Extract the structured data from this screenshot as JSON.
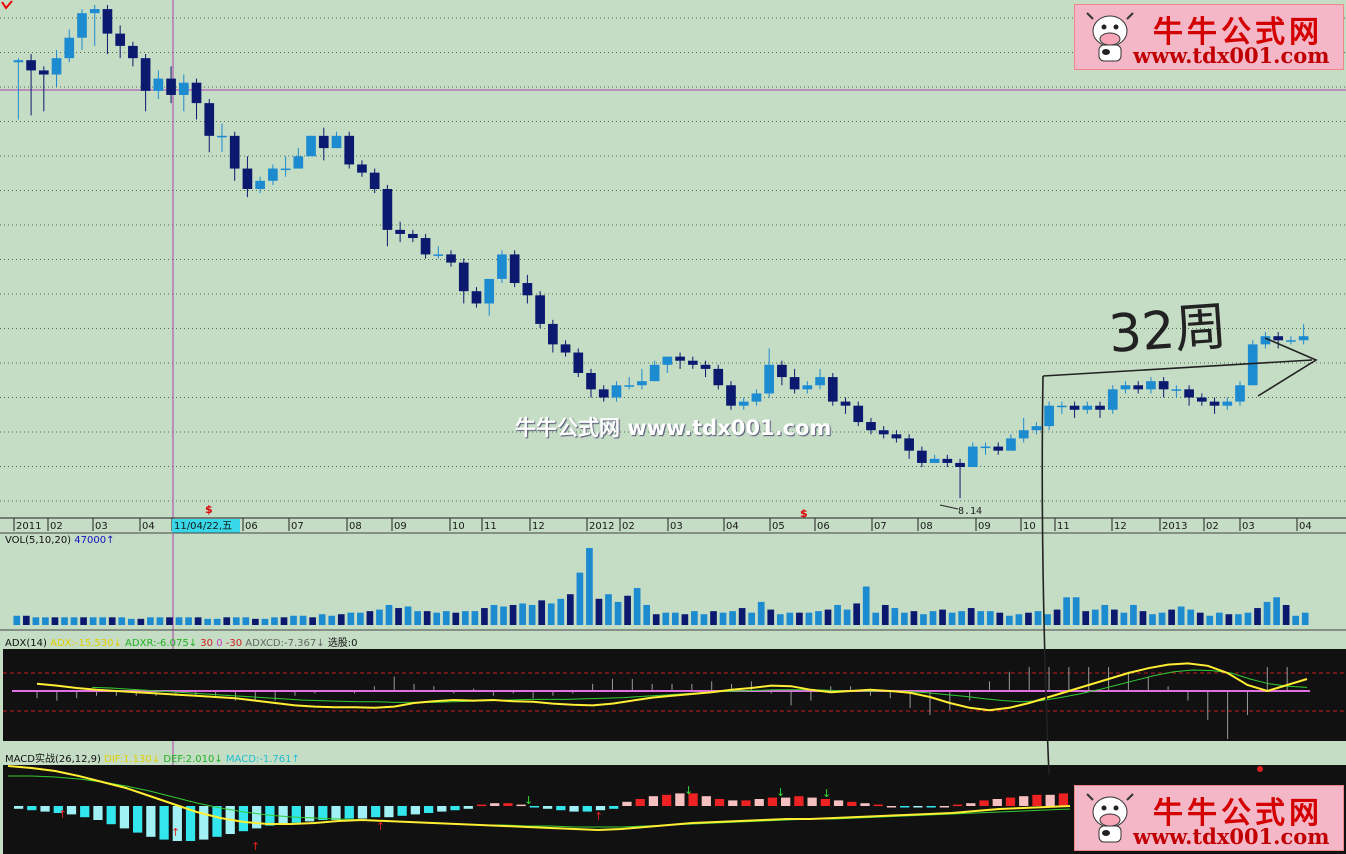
{
  "colors": {
    "background": "#c5dcc5",
    "up_candle": "#1d8bd0",
    "down_candle": "#0b1a6e",
    "indicator_bg": "#111111",
    "yellow_line": "#ffee33",
    "green_line": "#33cc33",
    "magenta_line": "#e070e0",
    "cyan_bar": "#33e6ee",
    "red_bar": "#ee2222"
  },
  "x_axis_labels": [
    "2011",
    "02",
    "03",
    "04",
    "11/04/22,五",
    "06",
    "07",
    "08",
    "09",
    "10",
    "11",
    "12",
    "2012",
    "02",
    "03",
    "04",
    "05",
    "06",
    "07",
    "08",
    "09",
    "10",
    "11",
    "12",
    "2013",
    "02",
    "03",
    "04"
  ],
  "price_low_label": "8.14",
  "volume_header": {
    "name": "VOL(5,10,20)",
    "value": "47000",
    "arrow": "↑"
  },
  "adx_header": {
    "name": "ADX(14)",
    "adx": "ADX:-15.530",
    "adx_arrow": "↓",
    "adxr": "ADXR:-6.075",
    "adxr_arrow": "↓",
    "level_30": "30",
    "level_0": "0",
    "level_m30": "-30",
    "adxcd": "ADXCD:-7.367",
    "adxcd_arrow": "↓",
    "select": "选股:0"
  },
  "macd_header": {
    "name": "MACD实战(26,12,9)",
    "dif": "DIF:1.130",
    "dif_arrow": "↓",
    "dea": "DEF:2.010",
    "dea_arrow": "↓",
    "macd": "MACD:-1.761",
    "macd_arrow": "↑"
  },
  "annotation": {
    "text": "32周"
  },
  "watermark": {
    "title": "牛牛公式网",
    "url": "www.tdx001.com",
    "center_text": "牛牛公式网 www.tdx001.com"
  },
  "chart_data": [
    {
      "type": "candlestick",
      "title": "",
      "period": "weekly",
      "x_ticks": [
        "2011",
        "02",
        "03",
        "04",
        "05",
        "06",
        "07",
        "08",
        "09",
        "10",
        "11",
        "12",
        "2012",
        "02",
        "03",
        "04",
        "05",
        "06",
        "07",
        "08",
        "09",
        "10",
        "11",
        "12",
        "2013",
        "02",
        "03",
        "04"
      ],
      "cursor_date": "11/04/22,五",
      "ylim": [
        7.8,
        20.2
      ],
      "low_marker": 8.14,
      "candles": [
        [
          18.8,
          18.85,
          17.4,
          18.9
        ],
        [
          18.85,
          18.6,
          17.5,
          19.0
        ],
        [
          18.6,
          18.5,
          17.6,
          18.7
        ],
        [
          18.5,
          18.9,
          18.2,
          19.1
        ],
        [
          18.9,
          19.4,
          18.8,
          19.6
        ],
        [
          19.4,
          20.0,
          19.1,
          20.1
        ],
        [
          20.0,
          20.1,
          19.2,
          20.2
        ],
        [
          20.1,
          19.5,
          19.0,
          20.2
        ],
        [
          19.5,
          19.2,
          18.9,
          19.7
        ],
        [
          19.2,
          18.9,
          18.7,
          19.3
        ],
        [
          18.9,
          18.1,
          17.6,
          19.0
        ],
        [
          18.1,
          18.4,
          17.9,
          18.6
        ],
        [
          18.4,
          18.0,
          17.8,
          18.7
        ],
        [
          18.0,
          18.3,
          17.6,
          18.5
        ],
        [
          18.3,
          17.8,
          17.4,
          18.4
        ],
        [
          17.8,
          17.0,
          16.6,
          17.9
        ],
        [
          17.0,
          17.0,
          16.6,
          17.3
        ],
        [
          17.0,
          16.2,
          15.9,
          17.1
        ],
        [
          16.2,
          15.7,
          15.5,
          16.5
        ],
        [
          15.7,
          15.9,
          15.6,
          16.0
        ],
        [
          15.9,
          16.2,
          15.8,
          16.3
        ],
        [
          16.2,
          16.2,
          16.0,
          16.5
        ],
        [
          16.2,
          16.5,
          16.2,
          16.7
        ],
        [
          16.5,
          17.0,
          16.5,
          17.0
        ],
        [
          17.0,
          16.7,
          16.4,
          17.2
        ],
        [
          16.7,
          17.0,
          16.7,
          17.1
        ],
        [
          17.0,
          16.3,
          16.2,
          17.1
        ],
        [
          16.3,
          16.1,
          16.0,
          16.4
        ],
        [
          16.1,
          15.7,
          15.6,
          16.2
        ],
        [
          15.7,
          14.7,
          14.3,
          15.8
        ],
        [
          14.7,
          14.6,
          14.4,
          14.9
        ],
        [
          14.6,
          14.5,
          14.4,
          14.7
        ],
        [
          14.5,
          14.1,
          14.0,
          14.6
        ],
        [
          14.1,
          14.1,
          14.0,
          14.3
        ],
        [
          14.1,
          13.9,
          13.8,
          14.2
        ],
        [
          13.9,
          13.2,
          12.9,
          14.0
        ],
        [
          13.2,
          12.9,
          12.8,
          13.3
        ],
        [
          12.9,
          13.5,
          12.6,
          13.5
        ],
        [
          13.5,
          14.1,
          13.4,
          14.2
        ],
        [
          14.1,
          13.4,
          13.3,
          14.2
        ],
        [
          13.4,
          13.1,
          12.9,
          13.6
        ],
        [
          13.1,
          12.4,
          12.3,
          13.2
        ],
        [
          12.4,
          11.9,
          11.7,
          12.5
        ],
        [
          11.9,
          11.7,
          11.6,
          12.0
        ],
        [
          11.7,
          11.2,
          11.1,
          11.8
        ],
        [
          11.2,
          10.8,
          10.6,
          11.3
        ],
        [
          10.8,
          10.6,
          10.5,
          10.9
        ],
        [
          10.6,
          10.9,
          10.5,
          11.0
        ],
        [
          10.9,
          10.9,
          10.8,
          11.1
        ],
        [
          10.9,
          11.0,
          10.8,
          11.3
        ],
        [
          11.0,
          11.4,
          11.0,
          11.5
        ],
        [
          11.4,
          11.6,
          11.2,
          11.6
        ],
        [
          11.6,
          11.5,
          11.3,
          11.7
        ],
        [
          11.5,
          11.4,
          11.3,
          11.6
        ],
        [
          11.4,
          11.3,
          11.1,
          11.5
        ],
        [
          11.3,
          10.9,
          10.8,
          11.4
        ],
        [
          10.9,
          10.4,
          10.3,
          11.0
        ],
        [
          10.4,
          10.5,
          10.3,
          10.6
        ],
        [
          10.5,
          10.7,
          10.4,
          10.8
        ],
        [
          10.7,
          11.4,
          10.6,
          11.8
        ],
        [
          11.4,
          11.1,
          10.9,
          11.5
        ],
        [
          11.1,
          10.8,
          10.7,
          11.3
        ],
        [
          10.8,
          10.9,
          10.7,
          11.0
        ],
        [
          10.9,
          11.1,
          10.8,
          11.3
        ],
        [
          11.1,
          10.5,
          10.4,
          11.2
        ],
        [
          10.5,
          10.4,
          10.2,
          10.6
        ],
        [
          10.4,
          10.0,
          9.9,
          10.5
        ],
        [
          10.0,
          9.8,
          9.7,
          10.1
        ],
        [
          9.8,
          9.7,
          9.6,
          9.9
        ],
        [
          9.7,
          9.6,
          9.5,
          9.8
        ],
        [
          9.6,
          9.3,
          9.1,
          9.7
        ],
        [
          9.3,
          9.0,
          8.9,
          9.4
        ],
        [
          9.0,
          9.1,
          9.0,
          9.2
        ],
        [
          9.1,
          9.0,
          8.9,
          9.2
        ],
        [
          9.0,
          8.9,
          8.14,
          9.1
        ],
        [
          8.9,
          9.4,
          8.9,
          9.5
        ],
        [
          9.4,
          9.4,
          9.2,
          9.5
        ],
        [
          9.4,
          9.3,
          9.2,
          9.5
        ],
        [
          9.3,
          9.6,
          9.3,
          9.7
        ],
        [
          9.6,
          9.8,
          9.5,
          10.1
        ],
        [
          9.8,
          9.9,
          9.7,
          10.0
        ],
        [
          9.9,
          10.4,
          9.8,
          10.5
        ],
        [
          10.4,
          10.4,
          10.2,
          10.5
        ],
        [
          10.4,
          10.3,
          10.1,
          10.5
        ],
        [
          10.3,
          10.4,
          10.2,
          10.5
        ],
        [
          10.4,
          10.3,
          10.1,
          10.5
        ],
        [
          10.3,
          10.8,
          10.2,
          10.9
        ],
        [
          10.8,
          10.9,
          10.7,
          11.0
        ],
        [
          10.9,
          10.8,
          10.7,
          11.0
        ],
        [
          10.8,
          11.0,
          10.7,
          11.1
        ],
        [
          11.0,
          10.8,
          10.6,
          11.1
        ],
        [
          10.8,
          10.8,
          10.6,
          10.9
        ],
        [
          10.8,
          10.6,
          10.4,
          10.9
        ],
        [
          10.6,
          10.5,
          10.4,
          10.7
        ],
        [
          10.5,
          10.4,
          10.2,
          10.6
        ],
        [
          10.4,
          10.5,
          10.3,
          10.6
        ],
        [
          10.5,
          10.9,
          10.4,
          11.0
        ],
        [
          10.9,
          11.9,
          10.9,
          12.0
        ],
        [
          11.9,
          12.1,
          11.8,
          12.2
        ],
        [
          12.1,
          12.0,
          11.8,
          12.2
        ],
        [
          12.0,
          12.0,
          11.9,
          12.1
        ],
        [
          12.0,
          12.1,
          11.9,
          12.4
        ]
      ]
    },
    {
      "type": "bar",
      "title": "VOL(5,10,20)",
      "values": [
        6,
        6,
        5,
        5,
        5,
        5,
        5,
        5,
        5,
        5,
        5,
        5,
        4,
        4,
        5,
        5,
        5,
        5,
        5,
        5,
        4,
        4,
        5,
        5,
        5,
        4,
        4,
        5,
        5,
        6,
        6,
        5,
        7,
        6,
        7,
        8,
        8,
        9,
        10,
        13,
        11,
        12,
        9,
        9,
        8,
        9,
        8,
        9,
        9,
        11,
        13,
        12,
        13,
        14,
        13,
        16,
        14,
        17,
        20,
        34,
        50,
        17,
        20,
        15,
        19,
        24,
        13,
        7,
        8,
        8,
        7,
        9,
        7,
        9,
        8,
        9,
        11,
        8,
        15,
        10,
        7,
        8,
        8,
        8,
        9,
        10,
        13,
        10,
        14,
        25,
        8,
        13,
        11,
        8,
        9,
        7,
        9,
        10,
        8,
        9,
        11,
        9,
        9,
        8,
        6,
        7,
        8,
        9,
        7,
        10,
        18,
        18,
        9,
        10,
        13,
        10,
        8,
        13,
        9,
        7,
        8,
        10,
        12,
        10,
        8,
        6,
        8,
        7,
        7,
        8,
        11,
        15,
        18,
        13,
        6,
        8
      ],
      "latest": 47000
    },
    {
      "type": "line",
      "title": "ADX(14)",
      "series": [
        {
          "name": "ADX",
          "values": [
            12,
            9,
            5,
            2,
            0,
            -2,
            -4,
            -6,
            -8,
            -10,
            -12,
            -16,
            -20,
            -24,
            -26,
            -27,
            -27,
            -28,
            -26,
            -20,
            -17,
            -15,
            -16,
            -15,
            -17,
            -18,
            -21,
            -23,
            -24,
            -21,
            -16,
            -11,
            -8,
            -5,
            -2,
            2,
            5,
            9,
            8,
            2,
            -2,
            0,
            2,
            0,
            -3,
            -10,
            -20,
            -28,
            -32,
            -28,
            -20,
            -10,
            0,
            10,
            20,
            30,
            38,
            44,
            46,
            42,
            30,
            10,
            0,
            10,
            20
          ]
        },
        {
          "name": "ADXR",
          "values": [
            6,
            5,
            3,
            1,
            -1,
            -3,
            -5,
            -7,
            -9,
            -11,
            -13,
            -15,
            -16,
            -17,
            -18,
            -18,
            -19,
            -19,
            -19,
            -18,
            -17,
            -16,
            -15,
            -14,
            -14,
            -14,
            -13,
            -12,
            -11,
            -9,
            -7,
            -5,
            -3,
            -1,
            0,
            1,
            2,
            2,
            2,
            1,
            0,
            0,
            0,
            -1,
            -3,
            -6,
            -9,
            -13,
            -16,
            -18,
            -16,
            -11,
            -5,
            2,
            10,
            18,
            26,
            32,
            35,
            34,
            30,
            20,
            12,
            8,
            6
          ]
        }
      ],
      "levels": [
        30,
        0,
        -30
      ]
    },
    {
      "type": "bar",
      "title": "MACD实战(26,12,9)",
      "macd_values": [
        -0.2,
        -0.3,
        -0.4,
        -0.5,
        -0.6,
        -0.8,
        -1.0,
        -1.3,
        -1.6,
        -1.9,
        -2.2,
        -2.4,
        -2.5,
        -2.5,
        -2.4,
        -2.2,
        -2.0,
        -1.8,
        -1.6,
        -1.4,
        -1.3,
        -1.2,
        -1.1,
        -1.0,
        -1.0,
        -0.9,
        -0.9,
        -0.8,
        -0.8,
        -0.7,
        -0.6,
        -0.5,
        -0.4,
        -0.3,
        -0.2,
        0.1,
        0.2,
        0.2,
        0.1,
        -0.1,
        -0.2,
        -0.3,
        -0.4,
        -0.4,
        -0.3,
        -0.2,
        0.3,
        0.5,
        0.7,
        0.8,
        0.9,
        0.9,
        0.7,
        0.5,
        0.4,
        0.4,
        0.5,
        0.6,
        0.6,
        0.7,
        0.6,
        0.5,
        0.4,
        0.3,
        0.2,
        0.1,
        0.0,
        -0.1,
        -0.1,
        -0.1,
        0.0,
        0.1,
        0.2,
        0.4,
        0.5,
        0.6,
        0.7,
        0.8,
        0.8,
        0.9
      ],
      "series": [
        {
          "name": "DIF",
          "values": [
            4.0,
            3.8,
            3.5,
            3.0,
            2.4,
            1.8,
            1.0,
            0.2,
            -0.6,
            -1.2,
            -1.6,
            -1.8,
            -1.8,
            -1.7,
            -1.5,
            -1.4,
            -1.5,
            -1.6,
            -1.7,
            -1.8,
            -1.9,
            -2.0,
            -2.1,
            -2.2,
            -2.3,
            -2.4,
            -2.3,
            -2.1,
            -1.9,
            -1.7,
            -1.6,
            -1.5,
            -1.4,
            -1.3,
            -1.3,
            -1.2,
            -1.1,
            -1.0,
            -0.9,
            -0.8,
            -0.7,
            -0.5,
            -0.3,
            -0.2,
            -0.1,
            0.0
          ]
        },
        {
          "name": "DEA",
          "values": [
            3.0,
            3.0,
            2.9,
            2.7,
            2.4,
            2.0,
            1.5,
            0.9,
            0.3,
            -0.2,
            -0.6,
            -0.9,
            -1.1,
            -1.2,
            -1.3,
            -1.4,
            -1.5,
            -1.6,
            -1.7,
            -1.8,
            -1.9,
            -1.9,
            -2.0,
            -2.0,
            -2.1,
            -2.1,
            -2.1,
            -2.0,
            -1.9,
            -1.8,
            -1.7,
            -1.6,
            -1.5,
            -1.4,
            -1.3,
            -1.3,
            -1.2,
            -1.1,
            -1.0,
            -0.9,
            -0.8,
            -0.7,
            -0.6,
            -0.5,
            -0.4,
            -0.3
          ]
        }
      ]
    }
  ]
}
